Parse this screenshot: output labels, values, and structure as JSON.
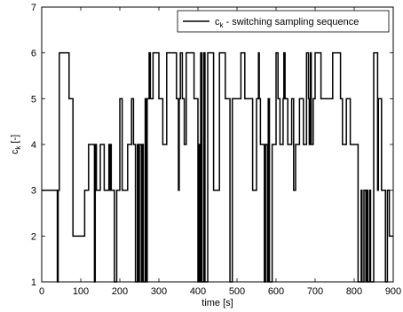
{
  "chart_data": {
    "type": "line",
    "title": "",
    "xlabel": "time [s]",
    "ylabel_main": "c",
    "ylabel_sub": "k",
    "ylabel_unit": " [-]",
    "xlim": [
      0,
      900
    ],
    "ylim": [
      1,
      7
    ],
    "xticks": [
      0,
      100,
      200,
      300,
      400,
      500,
      600,
      700,
      800,
      900
    ],
    "yticks": [
      1,
      2,
      3,
      4,
      5,
      6,
      7
    ],
    "grid": false,
    "legend_position": "top-right",
    "series": [
      {
        "legend_main": "c",
        "legend_sub": "k",
        "legend_rest": " - switching sampling sequence",
        "color": "#000000",
        "step": true,
        "x": [
          0,
          40,
          42,
          45,
          70,
          80,
          110,
          120,
          135,
          137,
          140,
          150,
          160,
          172,
          174,
          177,
          178,
          186,
          192,
          200,
          206,
          220,
          230,
          235,
          240,
          245,
          248,
          250,
          255,
          258,
          260,
          265,
          268,
          270,
          275,
          278,
          285,
          300,
          310,
          320,
          345,
          350,
          352,
          355,
          360,
          365,
          370,
          390,
          400,
          403,
          405,
          407,
          410,
          415,
          418,
          425,
          440,
          455,
          470,
          482,
          488,
          510,
          520,
          540,
          550,
          555,
          557,
          560,
          570,
          573,
          578,
          580,
          583,
          590,
          600,
          605,
          610,
          618,
          620,
          623,
          630,
          640,
          645,
          650,
          660,
          670,
          678,
          683,
          685,
          688,
          690,
          695,
          700,
          715,
          735,
          745,
          765,
          770,
          780,
          790,
          810,
          818,
          820,
          825,
          830,
          832,
          835,
          840,
          842,
          850,
          860,
          862,
          870,
          880,
          885,
          890,
          900
        ],
        "y": [
          3,
          1,
          3,
          6,
          5,
          2,
          3,
          4,
          1,
          4,
          3,
          4,
          3,
          4,
          3,
          4,
          3,
          1,
          3,
          5,
          3,
          4,
          5,
          4,
          1,
          4,
          1,
          4,
          1,
          4,
          1,
          5,
          1,
          5,
          6,
          5,
          6,
          5,
          4,
          6,
          5,
          3,
          5,
          6,
          5,
          4,
          6,
          5,
          1,
          4,
          1,
          6,
          1,
          6,
          1,
          6,
          3,
          6,
          5,
          1,
          5,
          6,
          5,
          3,
          5,
          6,
          5,
          4,
          1,
          4,
          1,
          5,
          1,
          4,
          6,
          5,
          4,
          5,
          6,
          5,
          4,
          5,
          3,
          4,
          5,
          4,
          6,
          5,
          4,
          6,
          4,
          5,
          6,
          5,
          5,
          6,
          5,
          4,
          5,
          4,
          1,
          3,
          1,
          3,
          1,
          3,
          1,
          3,
          1,
          6,
          3,
          5,
          3,
          1,
          3,
          2,
          2
        ]
      }
    ]
  }
}
